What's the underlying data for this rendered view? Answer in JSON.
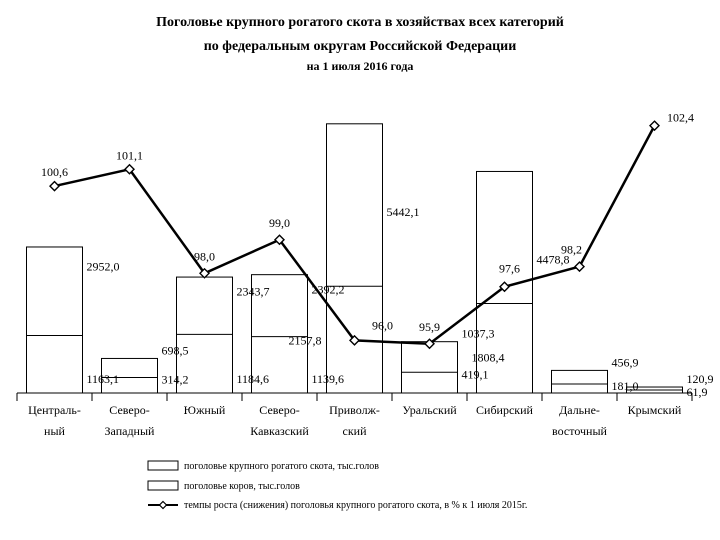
{
  "chart_data": {
    "type": "bar",
    "title_lines": [
      "Поголовье крупного рогатого скота в хозяйствах всех категорий",
      "по федеральным округам Российской Федерации",
      "на 1 июля 2016 года"
    ],
    "categories": [
      [
        "Централь-",
        "ный"
      ],
      [
        "Северо-",
        "Западный"
      ],
      [
        "Южный"
      ],
      [
        "Северо-",
        "Кавказский"
      ],
      [
        "Приволж-",
        "ский"
      ],
      [
        "Уральский"
      ],
      [
        "Сибирский"
      ],
      [
        "Дальне-",
        "восточный"
      ],
      [
        "Крымский"
      ]
    ],
    "series": [
      {
        "name": "поголовье крупного рогатого скота, тыс.голов",
        "values": [
          2952.0,
          698.5,
          2343.7,
          2392.2,
          5442.1,
          1037.3,
          4478.8,
          456.9,
          120.9
        ],
        "labels": [
          "2952,0",
          "698,5",
          "2343,7",
          "2392,2",
          "5442,1",
          "1037,3",
          "4478,8",
          "456,9",
          "120,9"
        ]
      },
      {
        "name": "поголовье коров, тыс.голов",
        "values": [
          1163.1,
          314.2,
          1184.6,
          1139.6,
          2157.8,
          419.1,
          1808.4,
          181.0,
          61.9
        ],
        "labels": [
          "1163,1",
          "314,2",
          "1184,6",
          "1139,6",
          "2157,8",
          "419,1",
          "1808,4",
          "181,0",
          "61,9"
        ]
      },
      {
        "name": "темпы роста (снижения) поголовья крупного рогатого скота, в % к 1 июля 2015г.",
        "type": "line",
        "values": [
          100.6,
          101.1,
          98.0,
          99.0,
          96.0,
          95.9,
          97.6,
          98.2,
          102.4
        ],
        "labels": [
          "100,6",
          "101,1",
          "98,0",
          "99,0",
          "96,0",
          "95,9",
          "97,6",
          "98,2",
          "102,4"
        ]
      }
    ],
    "ylim": [
      0,
      5600
    ],
    "line_ylim": [
      93.3,
      104.0
    ],
    "grid": false,
    "legend_position": "bottom"
  }
}
